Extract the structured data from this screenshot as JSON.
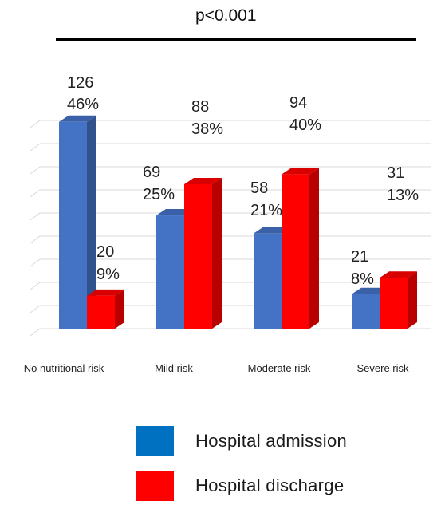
{
  "chart_data": {
    "type": "bar",
    "annotation": "p<0.001",
    "categories": [
      "No nutritional risk",
      "Mild risk",
      "Moderate risk",
      "Severe risk"
    ],
    "series": [
      {
        "name": "Hospital admission",
        "color": "#4472C4",
        "values": [
          126,
          69,
          58,
          21
        ],
        "count_labels": [
          "126",
          "69",
          "58",
          "21"
        ],
        "percent_labels": [
          "46%",
          "25%",
          "21%",
          "8%"
        ]
      },
      {
        "name": "Hospital discharge",
        "color": "#FF0000",
        "values": [
          20,
          88,
          94,
          31
        ],
        "count_labels": [
          "20",
          "88",
          "94",
          "31"
        ],
        "percent_labels": [
          "9%",
          "38%",
          "40%",
          "13%"
        ]
      }
    ],
    "ylim": [
      0,
      140
    ],
    "grid": true,
    "legend_position": "bottom"
  }
}
